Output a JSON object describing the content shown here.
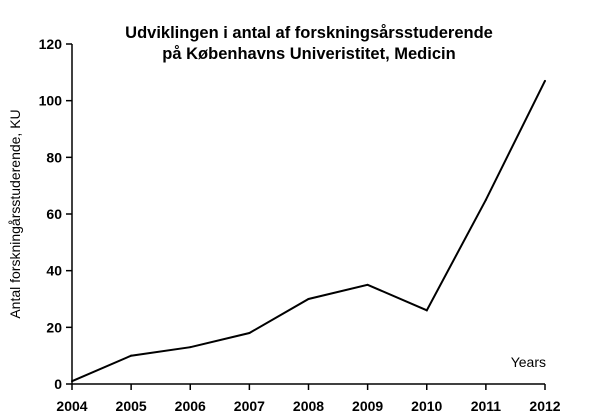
{
  "chart_data": {
    "type": "line",
    "title": [
      "Udviklingen i antal af forskningsårsstuderende",
      "på Københavns Univeristitet, Medicin"
    ],
    "xlabel": "Years",
    "ylabel": "Antal forskningårsstuderende, KU",
    "categories": [
      "2004",
      "2005",
      "2006",
      "2007",
      "2008",
      "2009",
      "2010",
      "2011",
      "2012"
    ],
    "series": [
      {
        "values": [
          1,
          10,
          13,
          18,
          30,
          35,
          26,
          65,
          107
        ]
      }
    ],
    "ylim": [
      0,
      120
    ],
    "yticks": [
      "0",
      "20",
      "40",
      "60",
      "80",
      "100",
      "120"
    ],
    "grid": false,
    "legend": "none",
    "line_color": "#000000"
  }
}
